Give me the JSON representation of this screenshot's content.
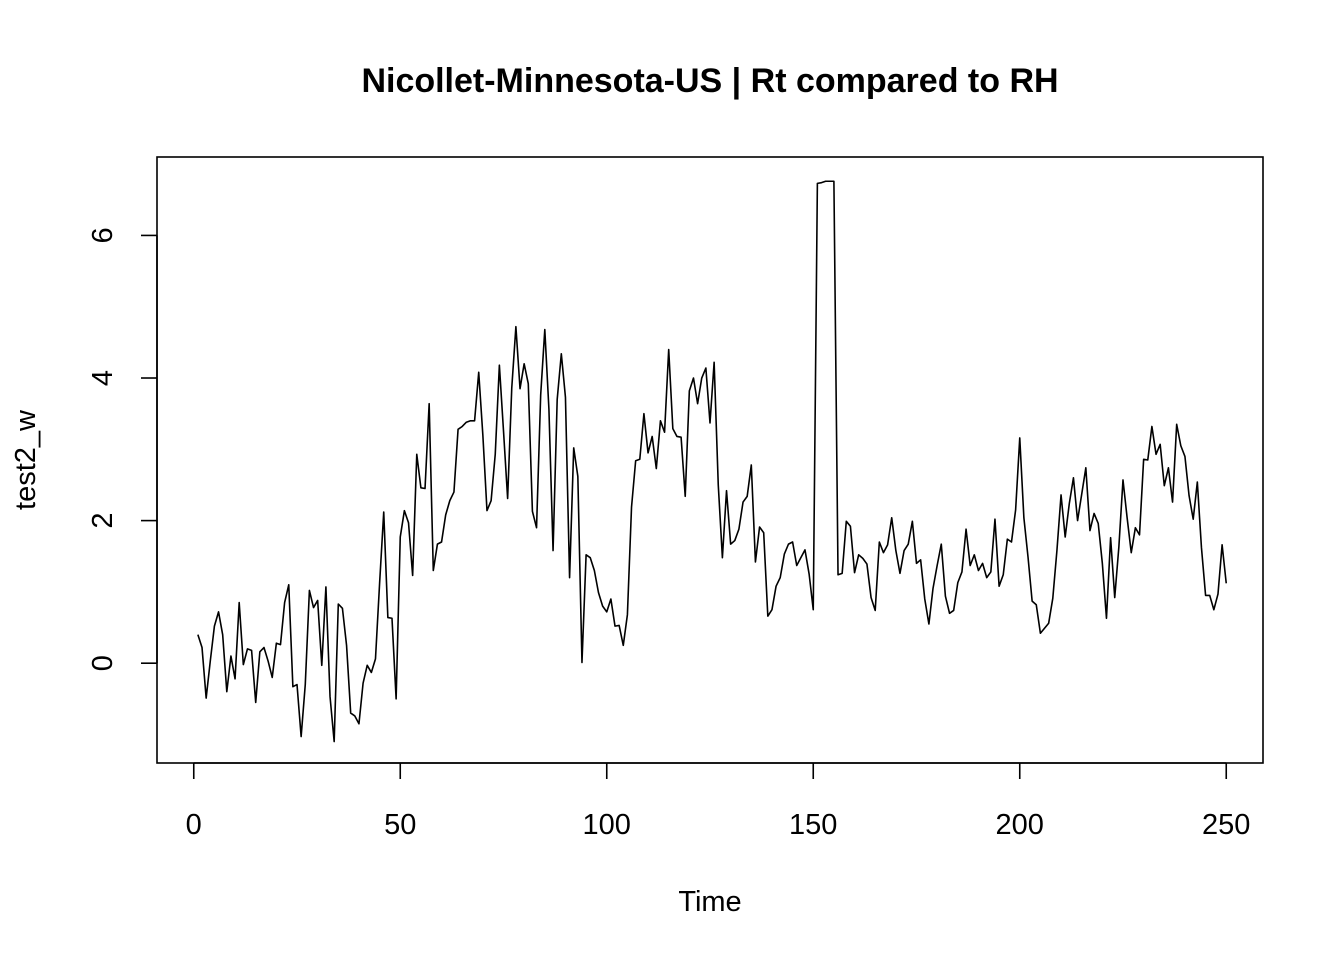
{
  "chart_data": {
    "type": "line",
    "title": "Nicollet-Minnesota-US | Rt compared to RH",
    "xlabel": "Time",
    "ylabel": "test2_w",
    "xlim": [
      -8.9,
      258.9
    ],
    "ylim": [
      -1.4,
      7.1
    ],
    "x_ticks": [
      0,
      50,
      100,
      150,
      200,
      250
    ],
    "y_ticks": [
      0,
      2,
      4,
      6
    ],
    "grid": false,
    "legend": "none",
    "line_color": "#000000",
    "series": [
      {
        "x_start": 1,
        "values": [
          0.4,
          0.22,
          -0.49,
          0.03,
          0.52,
          0.72,
          0.4,
          -0.4,
          0.1,
          -0.22,
          0.85,
          -0.02,
          0.2,
          0.18,
          -0.55,
          0.16,
          0.22,
          0.03,
          -0.2,
          0.28,
          0.26,
          0.85,
          1.1,
          -0.33,
          -0.3,
          -1.03,
          -0.3,
          1.02,
          0.78,
          0.88,
          -0.03,
          1.07,
          -0.47,
          -1.1,
          0.83,
          0.77,
          0.25,
          -0.7,
          -0.74,
          -0.85,
          -0.28,
          -0.03,
          -0.13,
          0.06,
          1.12,
          2.12,
          0.64,
          0.63,
          -0.5,
          1.77,
          2.14,
          1.97,
          1.23,
          2.93,
          2.46,
          2.45,
          3.64,
          1.3,
          1.67,
          1.7,
          2.08,
          2.28,
          2.4,
          3.28,
          3.32,
          3.38,
          3.4,
          3.4,
          4.08,
          3.2,
          2.14,
          2.28,
          2.93,
          4.18,
          3.26,
          2.31,
          3.86,
          4.72,
          3.85,
          4.2,
          3.92,
          2.13,
          1.9,
          3.76,
          4.68,
          3.56,
          1.58,
          3.7,
          4.34,
          3.73,
          1.2,
          3.02,
          2.62,
          0.01,
          1.52,
          1.48,
          1.3,
          0.99,
          0.8,
          0.72,
          0.9,
          0.52,
          0.53,
          0.25,
          0.68,
          2.19,
          2.84,
          2.86,
          3.5,
          2.95,
          3.18,
          2.73,
          3.4,
          3.24,
          4.4,
          3.29,
          3.18,
          3.17,
          2.34,
          3.82,
          4.0,
          3.64,
          4.0,
          4.14,
          3.37,
          4.22,
          2.5,
          1.48,
          2.42,
          1.67,
          1.72,
          1.88,
          2.26,
          2.34,
          2.78,
          1.42,
          1.91,
          1.83,
          0.66,
          0.75,
          1.08,
          1.2,
          1.53,
          1.67,
          1.7,
          1.37,
          1.48,
          1.59,
          1.25,
          0.75,
          6.73,
          6.74,
          6.76,
          6.76,
          6.76,
          1.24,
          1.26,
          1.99,
          1.92,
          1.27,
          1.52,
          1.47,
          1.39,
          0.92,
          0.74,
          1.7,
          1.55,
          1.66,
          2.04,
          1.58,
          1.26,
          1.58,
          1.67,
          1.99,
          1.4,
          1.45,
          0.9,
          0.55,
          1.05,
          1.37,
          1.67,
          0.94,
          0.7,
          0.74,
          1.13,
          1.28,
          1.88,
          1.37,
          1.52,
          1.3,
          1.4,
          1.2,
          1.28,
          2.02,
          1.08,
          1.24,
          1.74,
          1.7,
          2.15,
          3.16,
          2.04,
          1.49,
          0.87,
          0.82,
          0.42,
          0.49,
          0.56,
          0.91,
          1.58,
          2.36,
          1.77,
          2.24,
          2.6,
          2.0,
          2.37,
          2.74,
          1.86,
          2.1,
          1.96,
          1.4,
          0.63,
          1.76,
          0.92,
          1.63,
          2.57,
          2.04,
          1.55,
          1.9,
          1.8,
          2.86,
          2.85,
          3.32,
          2.93,
          3.07,
          2.49,
          2.74,
          2.26,
          3.35,
          3.05,
          2.9,
          2.35,
          2.02,
          2.54,
          1.62,
          0.95,
          0.95,
          0.75,
          0.97,
          1.66,
          1.12
        ]
      }
    ]
  }
}
